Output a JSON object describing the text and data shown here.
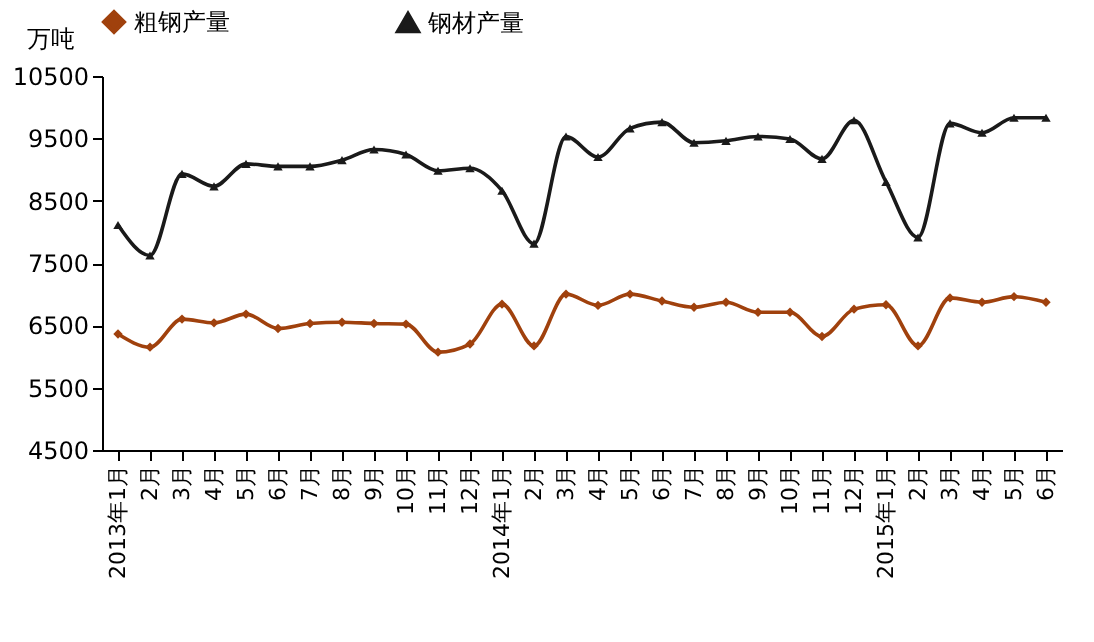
{
  "chart_data": {
    "type": "line",
    "ylabel": "万吨",
    "categories": [
      "2013年1月",
      "2月",
      "3月",
      "4月",
      "5月",
      "6月",
      "7月",
      "8月",
      "9月",
      "10月",
      "11月",
      "12月",
      "2014年1月",
      "2月",
      "3月",
      "4月",
      "5月",
      "6月",
      "7月",
      "8月",
      "9月",
      "10月",
      "11月",
      "12月",
      "2015年1月",
      "2月",
      "3月",
      "4月",
      "5月",
      "6月"
    ],
    "series": [
      {
        "name": "粗钢产量",
        "color": "#a0410d",
        "marker": "diamond",
        "values": [
          6360,
          6150,
          6600,
          6540,
          6680,
          6450,
          6530,
          6550,
          6530,
          6520,
          6070,
          6200,
          6840,
          6170,
          7000,
          6820,
          7000,
          6890,
          6790,
          6870,
          6710,
          6710,
          6320,
          6760,
          6830,
          6170,
          6940,
          6870,
          6960,
          6870
        ]
      },
      {
        "name": "钢材产量",
        "color": "#1a1a1a",
        "marker": "triangle",
        "values": [
          8110,
          7620,
          8930,
          8730,
          9090,
          9050,
          9050,
          9150,
          9320,
          9240,
          8980,
          9020,
          8660,
          7810,
          9530,
          9200,
          9660,
          9760,
          9430,
          9460,
          9530,
          9490,
          9170,
          9790,
          8800,
          7910,
          9740,
          9590,
          9830,
          9830
        ]
      }
    ],
    "ylim": [
      4500,
      10500
    ],
    "yticks": [
      4500,
      5500,
      6500,
      7500,
      8500,
      9500,
      10500
    ],
    "grid": false,
    "legend": "top"
  }
}
